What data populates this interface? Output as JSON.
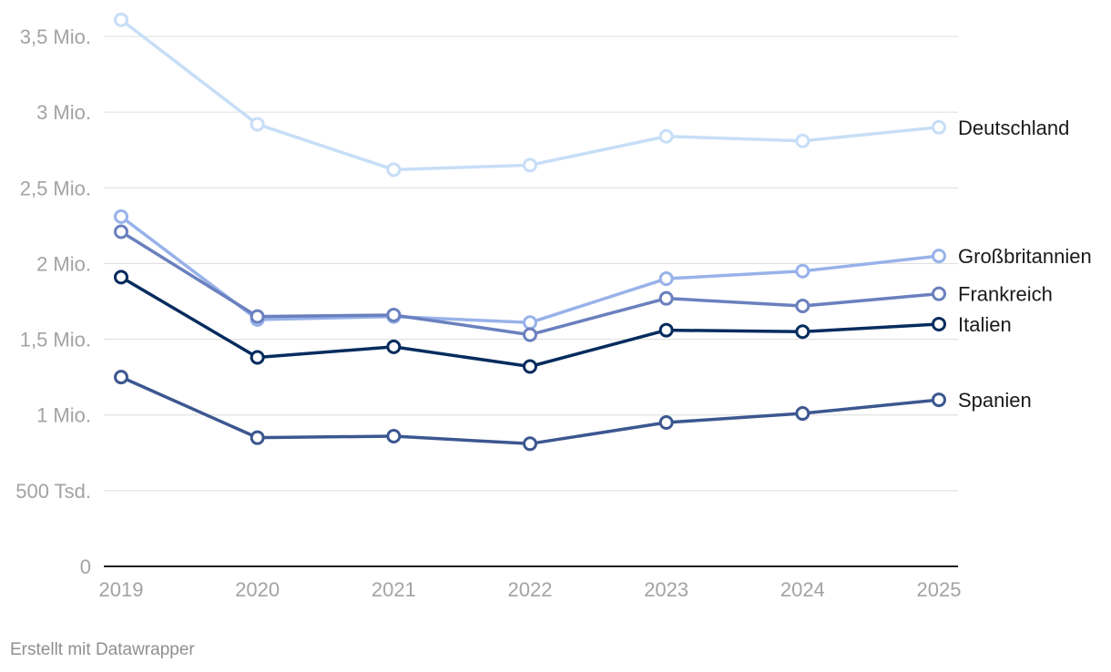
{
  "footer": {
    "text": "Erstellt mit Datawrapper"
  },
  "chart_data": {
    "type": "line",
    "title": "",
    "xlabel": "",
    "ylabel": "",
    "x": [
      "2019",
      "2020",
      "2021",
      "2022",
      "2023",
      "2024",
      "2025"
    ],
    "ylim": [
      0,
      3600000
    ],
    "yticks": [
      0,
      500000,
      1000000,
      1500000,
      2000000,
      2500000,
      3000000,
      3500000
    ],
    "ytick_labels": [
      "0",
      "500 Tsd.",
      "1 Mio.",
      "1,5 Mio.",
      "2 Mio.",
      "2,5 Mio.",
      "3 Mio.",
      "3,5 Mio."
    ],
    "grid": true,
    "legend": "direct labels at line ends",
    "series": [
      {
        "name": "Deutschland",
        "color": "#c7def7",
        "values": [
          3610000,
          2920000,
          2620000,
          2650000,
          2840000,
          2810000,
          2900000
        ]
      },
      {
        "name": "Großbritannien",
        "color": "#98b2ea",
        "values": [
          2310000,
          1630000,
          1650000,
          1610000,
          1900000,
          1950000,
          2050000
        ]
      },
      {
        "name": "Frankreich",
        "color": "#6a80be",
        "values": [
          2210000,
          1650000,
          1660000,
          1530000,
          1770000,
          1720000,
          1800000
        ]
      },
      {
        "name": "Italien",
        "color": "#062c5e",
        "values": [
          1910000,
          1380000,
          1450000,
          1320000,
          1560000,
          1550000,
          1600000
        ]
      },
      {
        "name": "Spanien",
        "color": "#3c5790",
        "values": [
          1250000,
          850000,
          860000,
          810000,
          950000,
          1010000,
          1100000
        ]
      }
    ]
  }
}
